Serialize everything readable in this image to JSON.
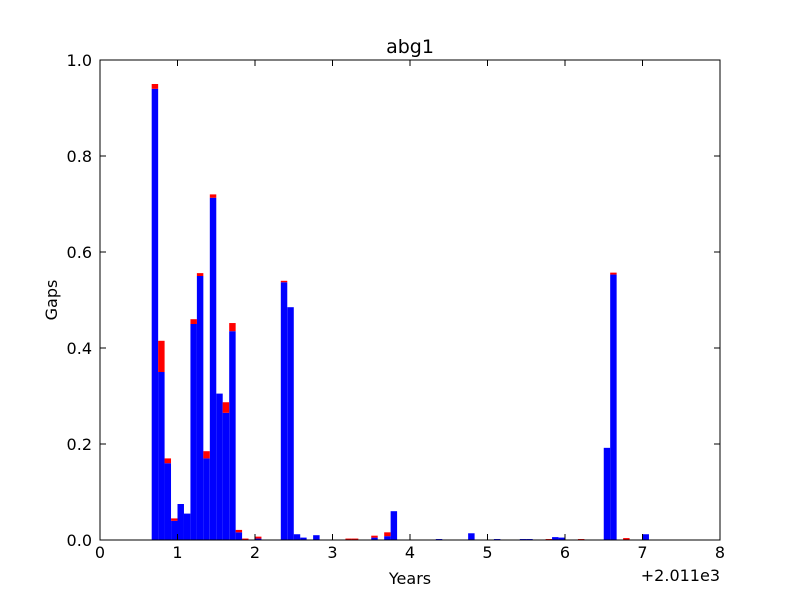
{
  "chart_data": {
    "type": "bar",
    "stacked": true,
    "title": "abg1",
    "xlabel": "Years",
    "ylabel": "Gaps",
    "x_offset_label": "+2.011e3",
    "xlim": [
      0,
      8
    ],
    "ylim": [
      0,
      1.0
    ],
    "xticks": [
      "0",
      "1",
      "2",
      "3",
      "4",
      "5",
      "6",
      "7",
      "8"
    ],
    "yticks": [
      "0.0",
      "0.2",
      "0.4",
      "0.6",
      "0.8",
      "1.0"
    ],
    "grid": false,
    "legend": "none",
    "bin_width": 0.0833,
    "series": [
      {
        "color": "#0000ff",
        "points": [
          {
            "x": 0.667,
            "y": 0.94
          },
          {
            "x": 0.75,
            "y": 0.35
          },
          {
            "x": 0.833,
            "y": 0.16
          },
          {
            "x": 0.917,
            "y": 0.04
          },
          {
            "x": 1.0,
            "y": 0.075
          },
          {
            "x": 1.083,
            "y": 0.055
          },
          {
            "x": 1.167,
            "y": 0.45
          },
          {
            "x": 1.25,
            "y": 0.55
          },
          {
            "x": 1.333,
            "y": 0.17
          },
          {
            "x": 1.417,
            "y": 0.713
          },
          {
            "x": 1.5,
            "y": 0.305
          },
          {
            "x": 1.583,
            "y": 0.265
          },
          {
            "x": 1.667,
            "y": 0.435
          },
          {
            "x": 1.75,
            "y": 0.016
          },
          {
            "x": 2.0,
            "y": 0.003
          },
          {
            "x": 2.333,
            "y": 0.537
          },
          {
            "x": 2.417,
            "y": 0.485
          },
          {
            "x": 2.5,
            "y": 0.012
          },
          {
            "x": 2.583,
            "y": 0.005
          },
          {
            "x": 2.75,
            "y": 0.01
          },
          {
            "x": 3.5,
            "y": 0.005
          },
          {
            "x": 3.667,
            "y": 0.008
          },
          {
            "x": 3.75,
            "y": 0.06
          },
          {
            "x": 4.333,
            "y": 0.002
          },
          {
            "x": 4.75,
            "y": 0.014
          },
          {
            "x": 5.083,
            "y": 0.002
          },
          {
            "x": 5.417,
            "y": 0.002
          },
          {
            "x": 5.5,
            "y": 0.002
          },
          {
            "x": 5.833,
            "y": 0.006
          },
          {
            "x": 5.917,
            "y": 0.005
          },
          {
            "x": 6.5,
            "y": 0.192
          },
          {
            "x": 6.583,
            "y": 0.553
          },
          {
            "x": 7.0,
            "y": 0.012
          }
        ]
      },
      {
        "color": "#ff0000",
        "points": [
          {
            "x": 0.667,
            "y": 0.01
          },
          {
            "x": 0.75,
            "y": 0.065
          },
          {
            "x": 0.833,
            "y": 0.01
          },
          {
            "x": 0.917,
            "y": 0.005
          },
          {
            "x": 1.167,
            "y": 0.01
          },
          {
            "x": 1.25,
            "y": 0.006
          },
          {
            "x": 1.333,
            "y": 0.015
          },
          {
            "x": 1.417,
            "y": 0.007
          },
          {
            "x": 1.583,
            "y": 0.022
          },
          {
            "x": 1.667,
            "y": 0.017
          },
          {
            "x": 1.75,
            "y": 0.005
          },
          {
            "x": 1.833,
            "y": 0.003
          },
          {
            "x": 2.0,
            "y": 0.004
          },
          {
            "x": 2.333,
            "y": 0.003
          },
          {
            "x": 3.167,
            "y": 0.003
          },
          {
            "x": 3.25,
            "y": 0.003
          },
          {
            "x": 3.5,
            "y": 0.004
          },
          {
            "x": 3.667,
            "y": 0.008
          },
          {
            "x": 5.75,
            "y": 0.002
          },
          {
            "x": 6.167,
            "y": 0.002
          },
          {
            "x": 6.583,
            "y": 0.004
          },
          {
            "x": 6.75,
            "y": 0.004
          }
        ]
      }
    ]
  }
}
